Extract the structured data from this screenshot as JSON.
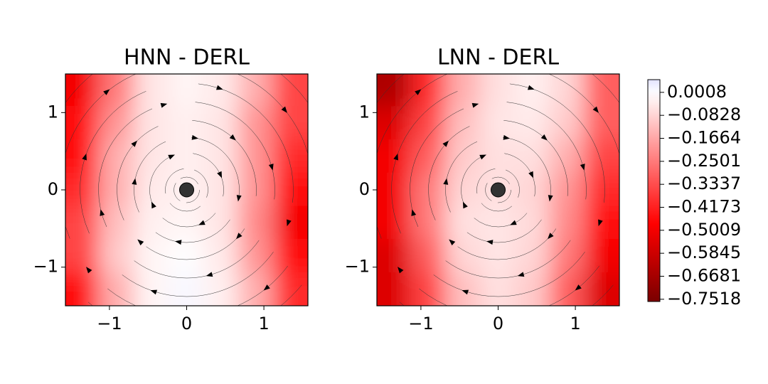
{
  "chart_data": [
    {
      "type": "heatmap",
      "title": "HNN - DERL",
      "xlim": [
        -1.57,
        1.57
      ],
      "ylim": [
        -1.5,
        1.5
      ],
      "xticks": [
        -1,
        0,
        1
      ],
      "yticks": [
        -1,
        0,
        1
      ],
      "xticklabels": [
        "−1",
        "0",
        "1"
      ],
      "yticklabels": [
        "−1",
        "0",
        "1"
      ],
      "x": [
        -1.35,
        -0.9,
        -0.45,
        0,
        0.45,
        0.9,
        1.35
      ],
      "y": [
        1.29,
        0.86,
        0.43,
        0,
        -0.43,
        -0.86,
        -1.29
      ],
      "z": [
        [
          -0.5,
          -0.25,
          -0.05,
          -0.02,
          -0.04,
          -0.15,
          -0.35
        ],
        [
          -0.45,
          -0.2,
          -0.05,
          -0.03,
          -0.05,
          -0.2,
          -0.35
        ],
        [
          -0.45,
          -0.15,
          -0.05,
          -0.03,
          -0.05,
          -0.2,
          -0.4
        ],
        [
          -0.4,
          -0.15,
          -0.04,
          -0.03,
          -0.05,
          -0.2,
          -0.45
        ],
        [
          -0.35,
          -0.12,
          -0.03,
          -0.02,
          -0.05,
          -0.22,
          -0.5
        ],
        [
          -0.35,
          -0.1,
          -0.02,
          0.0,
          -0.04,
          -0.2,
          -0.45
        ],
        [
          -0.45,
          -0.15,
          -0.02,
          0.01,
          -0.03,
          -0.15,
          -0.4
        ]
      ]
    },
    {
      "type": "heatmap",
      "title": "LNN - DERL",
      "xlim": [
        -1.57,
        1.57
      ],
      "ylim": [
        -1.5,
        1.5
      ],
      "xticks": [
        -1,
        0,
        1
      ],
      "yticks": [
        -1,
        0,
        1
      ],
      "xticklabels": [
        "−1",
        "0",
        "1"
      ],
      "yticklabels": [
        "−1",
        "0",
        "1"
      ],
      "x": [
        -1.35,
        -0.9,
        -0.45,
        0,
        0.45,
        0.9,
        1.35
      ],
      "y": [
        1.29,
        0.86,
        0.43,
        0,
        -0.43,
        -0.86,
        -1.29
      ],
      "z": [
        [
          -0.65,
          -0.4,
          -0.15,
          -0.06,
          -0.03,
          -0.08,
          -0.3
        ],
        [
          -0.55,
          -0.35,
          -0.12,
          -0.05,
          -0.04,
          -0.1,
          -0.3
        ],
        [
          -0.5,
          -0.3,
          -0.1,
          -0.06,
          -0.06,
          -0.15,
          -0.35
        ],
        [
          -0.5,
          -0.25,
          -0.08,
          -0.06,
          -0.08,
          -0.2,
          -0.4
        ],
        [
          -0.5,
          -0.25,
          -0.06,
          -0.05,
          -0.07,
          -0.22,
          -0.45
        ],
        [
          -0.55,
          -0.3,
          -0.08,
          -0.05,
          -0.08,
          -0.25,
          -0.5
        ],
        [
          -0.55,
          -0.35,
          -0.12,
          -0.06,
          -0.1,
          -0.3,
          -0.55
        ]
      ]
    }
  ],
  "colorbar": {
    "clim": [
      -0.76,
      0.047
    ],
    "ticks": [
      {
        "value": 0.0008,
        "label": "0.0008"
      },
      {
        "value": -0.0828,
        "label": "−0.0828"
      },
      {
        "value": -0.1664,
        "label": "−0.1664"
      },
      {
        "value": -0.2501,
        "label": "−0.2501"
      },
      {
        "value": -0.3337,
        "label": "−0.3337"
      },
      {
        "value": -0.4173,
        "label": "−0.4173"
      },
      {
        "value": -0.5009,
        "label": "−0.5009"
      },
      {
        "value": -0.5845,
        "label": "−0.5845"
      },
      {
        "value": -0.6681,
        "label": "−0.6681"
      },
      {
        "value": -0.7518,
        "label": "−0.7518"
      }
    ]
  }
}
